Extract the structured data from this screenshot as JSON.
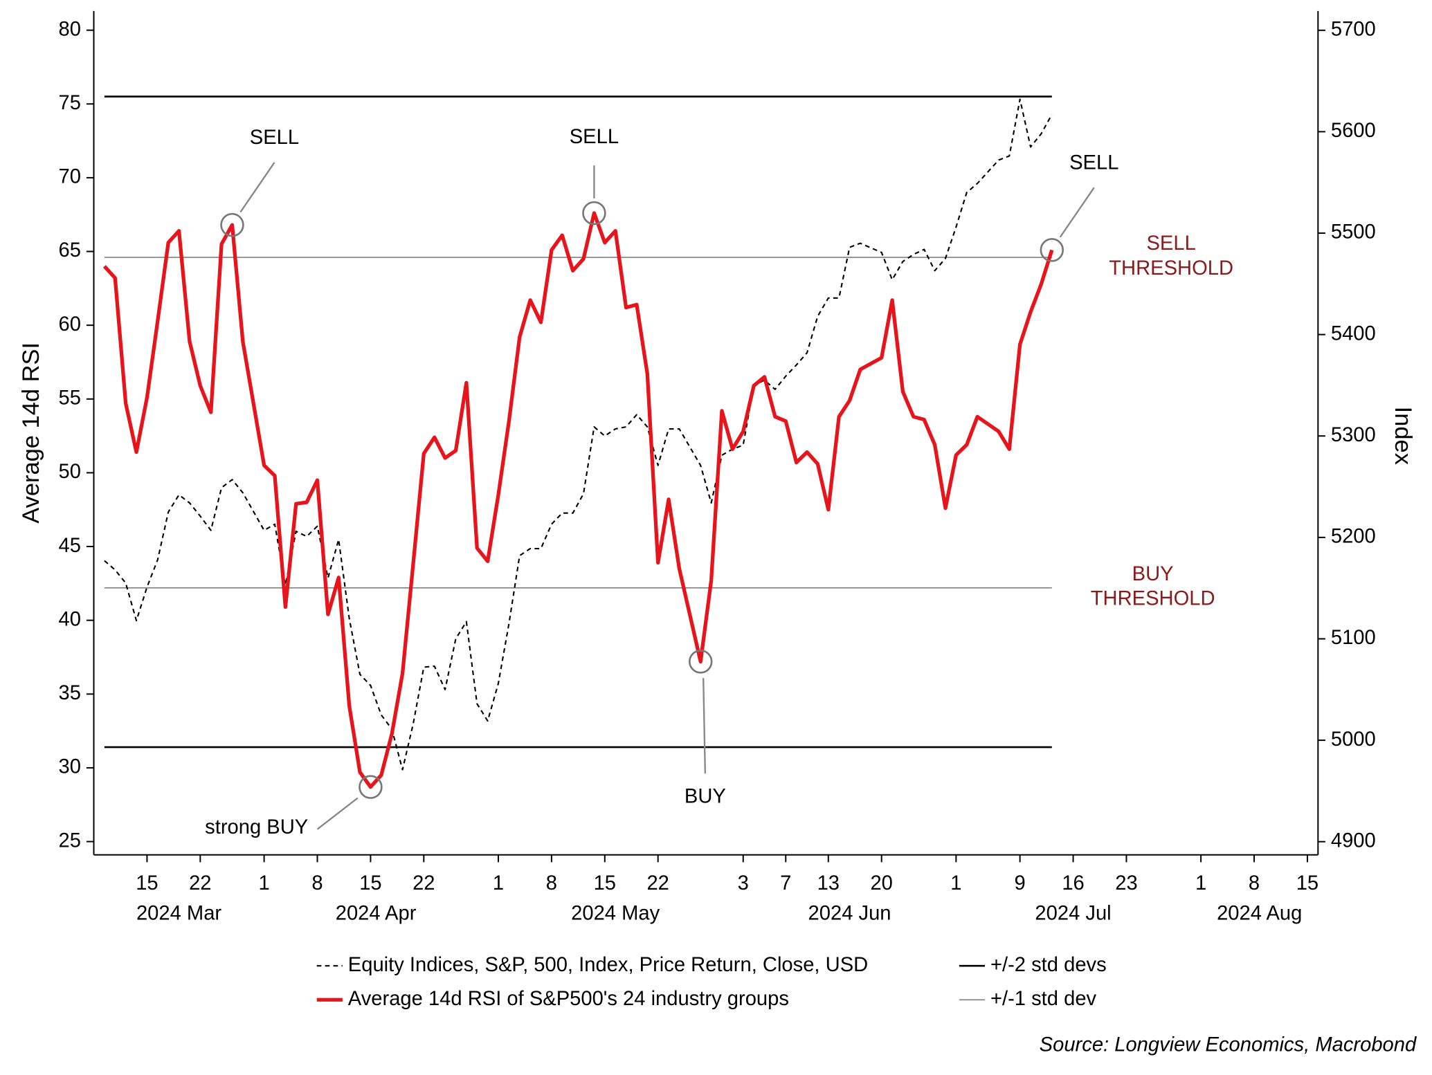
{
  "chart_data": {
    "type": "line",
    "x": [
      "2024-03-11",
      "2024-03-12",
      "2024-03-13",
      "2024-03-14",
      "2024-03-15",
      "2024-03-18",
      "2024-03-19",
      "2024-03-20",
      "2024-03-21",
      "2024-03-22",
      "2024-03-25",
      "2024-03-26",
      "2024-03-27",
      "2024-03-28",
      "2024-04-01",
      "2024-04-02",
      "2024-04-03",
      "2024-04-04",
      "2024-04-05",
      "2024-04-08",
      "2024-04-09",
      "2024-04-10",
      "2024-04-11",
      "2024-04-12",
      "2024-04-15",
      "2024-04-16",
      "2024-04-17",
      "2024-04-18",
      "2024-04-19",
      "2024-04-22",
      "2024-04-23",
      "2024-04-24",
      "2024-04-25",
      "2024-04-26",
      "2024-04-29",
      "2024-04-30",
      "2024-05-01",
      "2024-05-02",
      "2024-05-03",
      "2024-05-06",
      "2024-05-07",
      "2024-05-08",
      "2024-05-09",
      "2024-05-10",
      "2024-05-13",
      "2024-05-14",
      "2024-05-15",
      "2024-05-16",
      "2024-05-17",
      "2024-05-20",
      "2024-05-21",
      "2024-05-22",
      "2024-05-23",
      "2024-05-24",
      "2024-05-28",
      "2024-05-29",
      "2024-05-30",
      "2024-05-31",
      "2024-06-03",
      "2024-06-04",
      "2024-06-05",
      "2024-06-06",
      "2024-06-07",
      "2024-06-10",
      "2024-06-11",
      "2024-06-12",
      "2024-06-13",
      "2024-06-14",
      "2024-06-17",
      "2024-06-18",
      "2024-06-20",
      "2024-06-21",
      "2024-06-24",
      "2024-06-25",
      "2024-06-26",
      "2024-06-27",
      "2024-06-28",
      "2024-07-01",
      "2024-07-02",
      "2024-07-03",
      "2024-07-05",
      "2024-07-08",
      "2024-07-09",
      "2024-07-10",
      "2024-07-11",
      "2024-07-12"
    ],
    "xlim": [
      "2024-03-08",
      "2024-08-16"
    ],
    "xticks": [
      {
        "value": "2024-03-15",
        "label": "15"
      },
      {
        "value": "2024-03-22",
        "label": "22"
      },
      {
        "value": "2024-04-01",
        "label": "1"
      },
      {
        "value": "2024-04-08",
        "label": "8"
      },
      {
        "value": "2024-04-15",
        "label": "15"
      },
      {
        "value": "2024-04-22",
        "label": "22"
      },
      {
        "value": "2024-05-01",
        "label": "1"
      },
      {
        "value": "2024-05-08",
        "label": "8"
      },
      {
        "value": "2024-05-15",
        "label": "15"
      },
      {
        "value": "2024-05-22",
        "label": "22"
      },
      {
        "value": "2024-06-03",
        "label": "3"
      },
      {
        "value": "2024-06-07",
        "label": "7"
      },
      {
        "value": "2024-06-13",
        "label": "13"
      },
      {
        "value": "2024-06-20",
        "label": "20"
      },
      {
        "value": "2024-07-01",
        "label": "1"
      },
      {
        "value": "2024-07-09",
        "label": "9"
      },
      {
        "value": "2024-07-16",
        "label": "16"
      },
      {
        "value": "2024-07-23",
        "label": "23"
      },
      {
        "value": "2024-08-01",
        "label": "1"
      },
      {
        "value": "2024-08-08",
        "label": "8"
      },
      {
        "value": "2024-08-15",
        "label": "15"
      }
    ],
    "month_labels": [
      {
        "value": "2024-03",
        "label": "2024 Mar"
      },
      {
        "value": "2024-04",
        "label": "2024 Apr"
      },
      {
        "value": "2024-05",
        "label": "2024 May"
      },
      {
        "value": "2024-06",
        "label": "2024 Jun"
      },
      {
        "value": "2024-07",
        "label": "2024 Jul"
      },
      {
        "value": "2024-08",
        "label": "2024 Aug"
      }
    ],
    "ylabel": "Average 14d RSI",
    "y2label": "Index",
    "ylim": [
      24.1,
      81.3
    ],
    "yticks": [
      25,
      30,
      35,
      40,
      45,
      50,
      55,
      60,
      65,
      70,
      75,
      80
    ],
    "y2lim": [
      4887,
      5719
    ],
    "y2ticks": [
      4900,
      5000,
      5100,
      5200,
      5300,
      5400,
      5500,
      5600,
      5700
    ],
    "series": [
      {
        "name": "Equity Indices, S&P, 500, Index, Price Return, Close, USD",
        "color": "#000000",
        "dash": true,
        "axis": "y2",
        "values": [
          5177,
          5168,
          5155,
          5118,
          5151,
          5178,
          5225,
          5242,
          5234,
          5221,
          5207,
          5249,
          5257,
          5244,
          5207,
          5213,
          5153,
          5206,
          5201,
          5211,
          5160,
          5198,
          5120,
          5065,
          5054,
          5025,
          5011,
          4971,
          5016,
          5072,
          5073,
          5050,
          5100,
          5117,
          5036,
          5019,
          5056,
          5115,
          5182,
          5189,
          5189,
          5213,
          5224,
          5224,
          5243,
          5309,
          5300,
          5307,
          5309,
          5321,
          5309,
          5271,
          5307,
          5307,
          5271,
          5234,
          5281,
          5287,
          5291,
          5350,
          5355,
          5346,
          5359,
          5370,
          5382,
          5418,
          5436,
          5436,
          5486,
          5490,
          5481,
          5454,
          5472,
          5479,
          5484,
          5463,
          5475,
          5506,
          5540,
          5549,
          5572,
          5576,
          5632,
          5585,
          5598,
          5617
        ]
      },
      {
        "name": "Average 14d RSI of S&P500's 24 industry groups",
        "color": "#e8141b",
        "values": [
          64.0,
          63.2,
          54.7,
          51.4,
          55.1,
          60.3,
          65.6,
          66.4,
          58.9,
          55.9,
          54.1,
          65.5,
          66.8,
          58.9,
          50.5,
          49.8,
          40.9,
          47.9,
          48.0,
          49.5,
          40.4,
          42.9,
          34.2,
          29.7,
          28.7,
          29.5,
          32.3,
          36.4,
          43.8,
          51.3,
          52.4,
          51.0,
          51.5,
          56.1,
          44.9,
          44.0,
          48.5,
          53.5,
          59.2,
          61.7,
          60.2,
          65.1,
          66.1,
          63.7,
          64.5,
          67.6,
          65.6,
          66.4,
          61.2,
          61.4,
          56.7,
          43.9,
          48.2,
          43.5,
          37.2,
          42.7,
          54.2,
          51.6,
          52.8,
          55.9,
          56.5,
          53.8,
          53.5,
          50.7,
          51.4,
          50.6,
          47.5,
          53.8,
          54.9,
          57.0,
          57.8,
          61.7,
          55.5,
          53.8,
          53.6,
          51.9,
          47.6,
          51.2,
          51.9,
          53.8,
          52.8,
          51.6,
          58.7,
          60.9,
          62.8,
          65.1
        ]
      }
    ],
    "bands": [
      {
        "name": "+/-2 std devs",
        "color": "#000000",
        "values": [
          75.5,
          31.4
        ]
      },
      {
        "name": "+/-1 std dev",
        "color": "#808080",
        "values": [
          64.6,
          42.2
        ]
      }
    ],
    "threshold_labels": [
      [
        "SELL",
        "THRESHOLD"
      ],
      [
        "BUY",
        "THRESHOLD"
      ]
    ],
    "threshold_color": "#8b1a1a",
    "annotations": [
      {
        "label": "SELL",
        "x": "2024-03-27",
        "y": 66.8,
        "side": "above-right"
      },
      {
        "label": "strong BUY",
        "x": "2024-04-15",
        "y": 28.7,
        "side": "below-left"
      },
      {
        "label": "SELL",
        "x": "2024-05-14",
        "y": 67.6,
        "side": "above"
      },
      {
        "label": "BUY",
        "x": "2024-05-28",
        "y": 37.2,
        "side": "below"
      },
      {
        "label": "SELL",
        "x": "2024-07-12",
        "y": 65.1,
        "side": "above-right"
      }
    ],
    "source": "Source: Longview Economics, Macrobond"
  }
}
